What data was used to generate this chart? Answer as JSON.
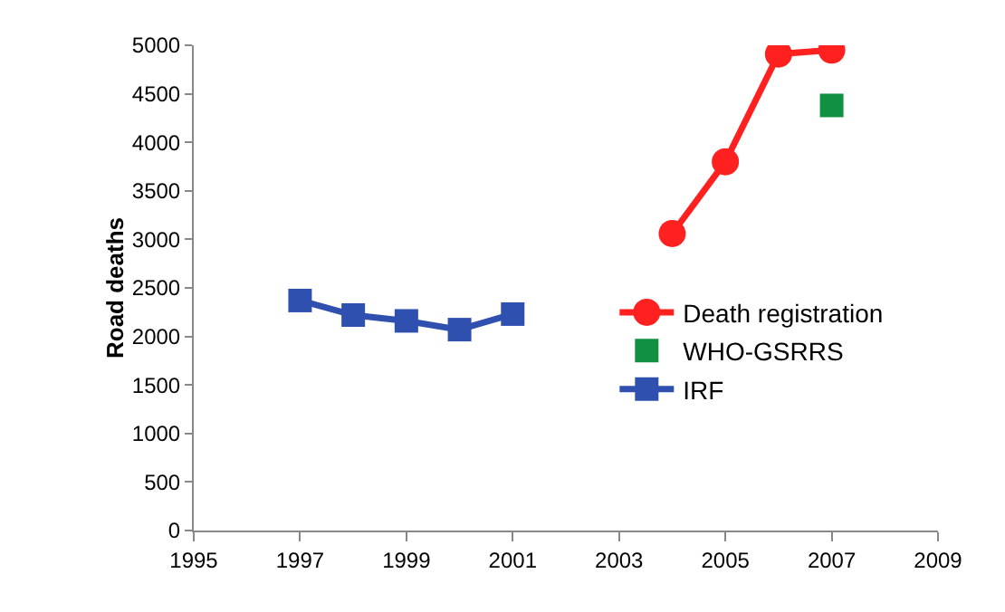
{
  "chart_data": {
    "type": "line",
    "ylabel": "Road deaths",
    "xlim": [
      1995,
      2009
    ],
    "xticks": [
      1995,
      1997,
      1999,
      2001,
      2003,
      2005,
      2007,
      2009
    ],
    "ylim": [
      0,
      5000
    ],
    "yticks": [
      0,
      500,
      1000,
      1500,
      2000,
      2500,
      3000,
      3500,
      4000,
      4500,
      5000
    ],
    "grid": false,
    "legend": "right",
    "series": [
      {
        "name": "Death registration",
        "color": "#ff2020",
        "type": "line",
        "marker": "circle",
        "x": [
          2004,
          2005,
          2006,
          2007
        ],
        "values": [
          3060,
          3800,
          4910,
          4950
        ]
      },
      {
        "name": "WHO-GSRRS",
        "color": "#109040",
        "type": "scatter",
        "marker": "square",
        "x": [
          2007
        ],
        "values": [
          4380
        ]
      },
      {
        "name": "IRF",
        "color": "#3050b0",
        "type": "line",
        "marker": "square",
        "x": [
          1997,
          1998,
          1999,
          2000,
          2001
        ],
        "values": [
          2370,
          2220,
          2160,
          2070,
          2230
        ]
      }
    ]
  }
}
